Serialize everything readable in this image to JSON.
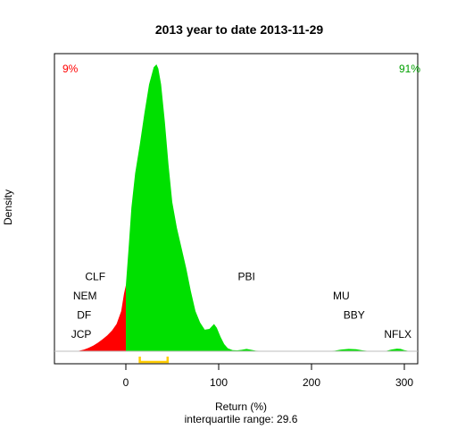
{
  "chart_data": {
    "type": "area",
    "title": "2013  year to date 2013-11-29",
    "xlabel": "Return (%)",
    "ylabel": "Density",
    "subtitle": "interquartile range: 29.6",
    "xlim": [
      -80,
      320
    ],
    "xticks": [
      0,
      100,
      200,
      300
    ],
    "grid": false,
    "left_percent_label": "9%",
    "right_percent_label": "91%",
    "split_x": 0,
    "iqr": [
      15,
      45
    ],
    "colors": {
      "negative": "#ff0000",
      "positive": "#00e000",
      "iqr": "#ffcc00",
      "baseline": "#bebebe"
    },
    "density": {
      "x": [
        -55,
        -50,
        -45,
        -40,
        -35,
        -30,
        -25,
        -20,
        -15,
        -10,
        -5,
        -2,
        0,
        3,
        6,
        10,
        15,
        20,
        25,
        30,
        33,
        35,
        38,
        42,
        46,
        50,
        55,
        60,
        65,
        70,
        75,
        80,
        85,
        90,
        95,
        98,
        102,
        106,
        110,
        115,
        120,
        125,
        130,
        135,
        140,
        150,
        180,
        210,
        225,
        232,
        240,
        248,
        255,
        262,
        270,
        280,
        286,
        292,
        296,
        300,
        305,
        315
      ],
      "y": [
        0,
        0.002,
        0.006,
        0.012,
        0.02,
        0.03,
        0.042,
        0.055,
        0.072,
        0.095,
        0.14,
        0.2,
        0.23,
        0.36,
        0.5,
        0.62,
        0.72,
        0.83,
        0.93,
        0.99,
        1.0,
        0.985,
        0.93,
        0.8,
        0.65,
        0.52,
        0.43,
        0.36,
        0.29,
        0.21,
        0.14,
        0.1,
        0.075,
        0.078,
        0.095,
        0.082,
        0.05,
        0.025,
        0.01,
        0.004,
        0.003,
        0.005,
        0.008,
        0.005,
        0.002,
        0.001,
        0,
        0,
        0.002,
        0.006,
        0.008,
        0.007,
        0.003,
        0.001,
        0,
        0.001,
        0.006,
        0.009,
        0.008,
        0.004,
        0.001,
        0
      ]
    },
    "annotations": [
      {
        "label": "CLF",
        "x": -33,
        "y_level": 0.247
      },
      {
        "label": "NEM",
        "x": -44,
        "y_level": 0.18
      },
      {
        "label": "DF",
        "x": -45,
        "y_level": 0.114
      },
      {
        "label": "JCP",
        "x": -48,
        "y_level": 0.047
      },
      {
        "label": "PBI",
        "x": 130,
        "y_level": 0.247
      },
      {
        "label": "MU",
        "x": 232,
        "y_level": 0.18
      },
      {
        "label": "BBY",
        "x": 246,
        "y_level": 0.114
      },
      {
        "label": "NFLX",
        "x": 293,
        "y_level": 0.047
      }
    ]
  }
}
